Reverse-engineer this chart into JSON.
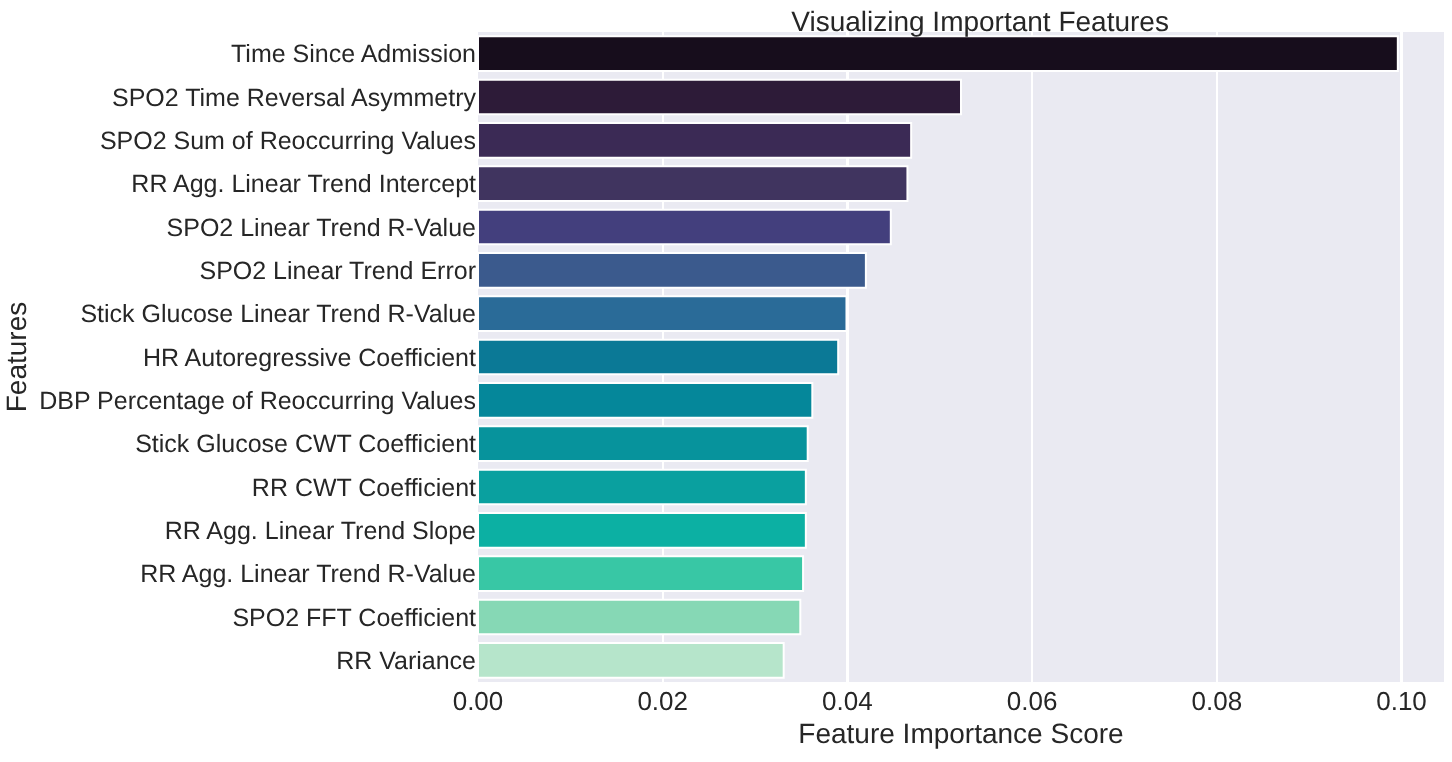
{
  "chart_data": {
    "type": "bar",
    "orientation": "horizontal",
    "title": "Visualizing Important Features",
    "xlabel": "Feature Importance Score",
    "ylabel": "Features",
    "categories": [
      "Time Since Admission",
      "SPO2 Time Reversal Asymmetry",
      "SPO2 Sum of Reoccurring Values",
      "RR Agg. Linear Trend Intercept",
      "SPO2 Linear Trend R-Value",
      "SPO2 Linear Trend Error",
      "Stick Glucose Linear Trend R-Value",
      "HR Autoregressive Coefficient",
      "DBP Percentage of Reoccurring Values",
      "Stick Glucose CWT Coefficient",
      "RR CWT Coefficient",
      "RR Agg. Linear Trend Slope",
      "RR Agg. Linear Trend R-Value",
      "SPO2 FFT Coefficient",
      "RR Variance"
    ],
    "values": [
      0.0996,
      0.0523,
      0.0469,
      0.0465,
      0.0447,
      0.042,
      0.0399,
      0.039,
      0.0362,
      0.0357,
      0.0355,
      0.0355,
      0.0352,
      0.0349,
      0.0331
    ],
    "colors": [
      "#170d1c",
      "#2d1b38",
      "#3b2a55",
      "#40345f",
      "#433f7d",
      "#3b5a8d",
      "#2a6b98",
      "#0b7996",
      "#05879a",
      "#07939c",
      "#0aa09f",
      "#0cb0a3",
      "#38c7a5",
      "#86d8b5",
      "#b6e5cb"
    ],
    "xlim": [
      0,
      0.1046
    ],
    "xticks": [
      {
        "value": 0,
        "label": "0.00"
      },
      {
        "value": 0.02,
        "label": "0.02"
      },
      {
        "value": 0.04,
        "label": "0.04"
      },
      {
        "value": 0.06,
        "label": "0.06"
      },
      {
        "value": 0.08,
        "label": "0.08"
      },
      {
        "value": 0.1,
        "label": "0.10"
      }
    ],
    "grid": "x"
  }
}
